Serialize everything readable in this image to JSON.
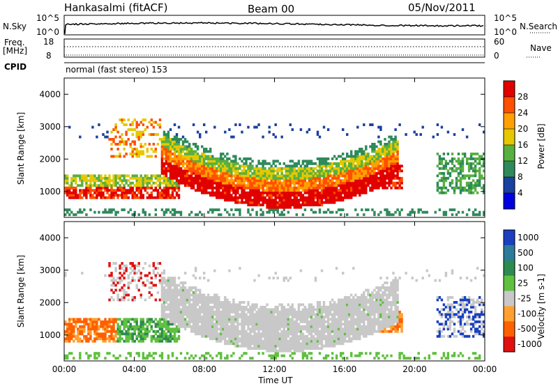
{
  "header": {
    "station": "Hankasalmi (fitACF)",
    "beam": "Beam 00",
    "date": "05/Nov/2011"
  },
  "noise_panel": {
    "left_label": "N.Sky",
    "right_label": "N.Search",
    "left_ticks": [
      "10^5",
      "10^0"
    ],
    "right_ticks": [
      "10^5",
      "10^0"
    ]
  },
  "freq_panel": {
    "left_label_1": "Freq.",
    "left_label_2": "[MHz]",
    "right_label": "Nave",
    "left_ticks": [
      "18",
      "8"
    ],
    "right_ticks": [
      "60",
      "0"
    ]
  },
  "cpid": {
    "label": "CPID",
    "text": "normal (fast stereo) 153"
  },
  "chart_data": [
    {
      "type": "heatmap",
      "name": "power",
      "ylabel": "Slant Range [km]",
      "yticks": [
        "4000",
        "3000",
        "2000",
        "1000"
      ],
      "ylim": [
        200,
        4500
      ],
      "xticks": [
        "00:00",
        "04:00",
        "08:00",
        "12:00",
        "16:00",
        "20:00",
        "00:00"
      ],
      "xlim": [
        0,
        24
      ],
      "colorbar": {
        "label": "Power [dB]",
        "ticks": [
          "28",
          "24",
          "20",
          "16",
          "12",
          "8",
          "4"
        ],
        "colors": [
          "#e00000",
          "#ff5000",
          "#ffa000",
          "#e6c800",
          "#58b040",
          "#2e8a5a",
          "#1a40a0",
          "#0000e0"
        ]
      }
    },
    {
      "type": "heatmap",
      "name": "velocity",
      "ylabel": "Slant Range [km]",
      "yticks": [
        "4000",
        "3000",
        "2000",
        "1000"
      ],
      "ylim": [
        200,
        4500
      ],
      "xticks": [
        "00:00",
        "04:00",
        "08:00",
        "12:00",
        "16:00",
        "20:00",
        "00:00"
      ],
      "xlim": [
        0,
        24
      ],
      "xlabel": "Time UT",
      "colorbar": {
        "label": "Velocity [m s-1]",
        "ticks": [
          "1000",
          "500",
          "100",
          "25",
          "-25",
          "-100",
          "-500",
          "-1000"
        ],
        "colors": [
          "#1a40c0",
          "#2e7a9a",
          "#2e8a50",
          "#60c040",
          "#c8c8c8",
          "#ffa030",
          "#ff6000",
          "#e01010"
        ]
      }
    }
  ]
}
